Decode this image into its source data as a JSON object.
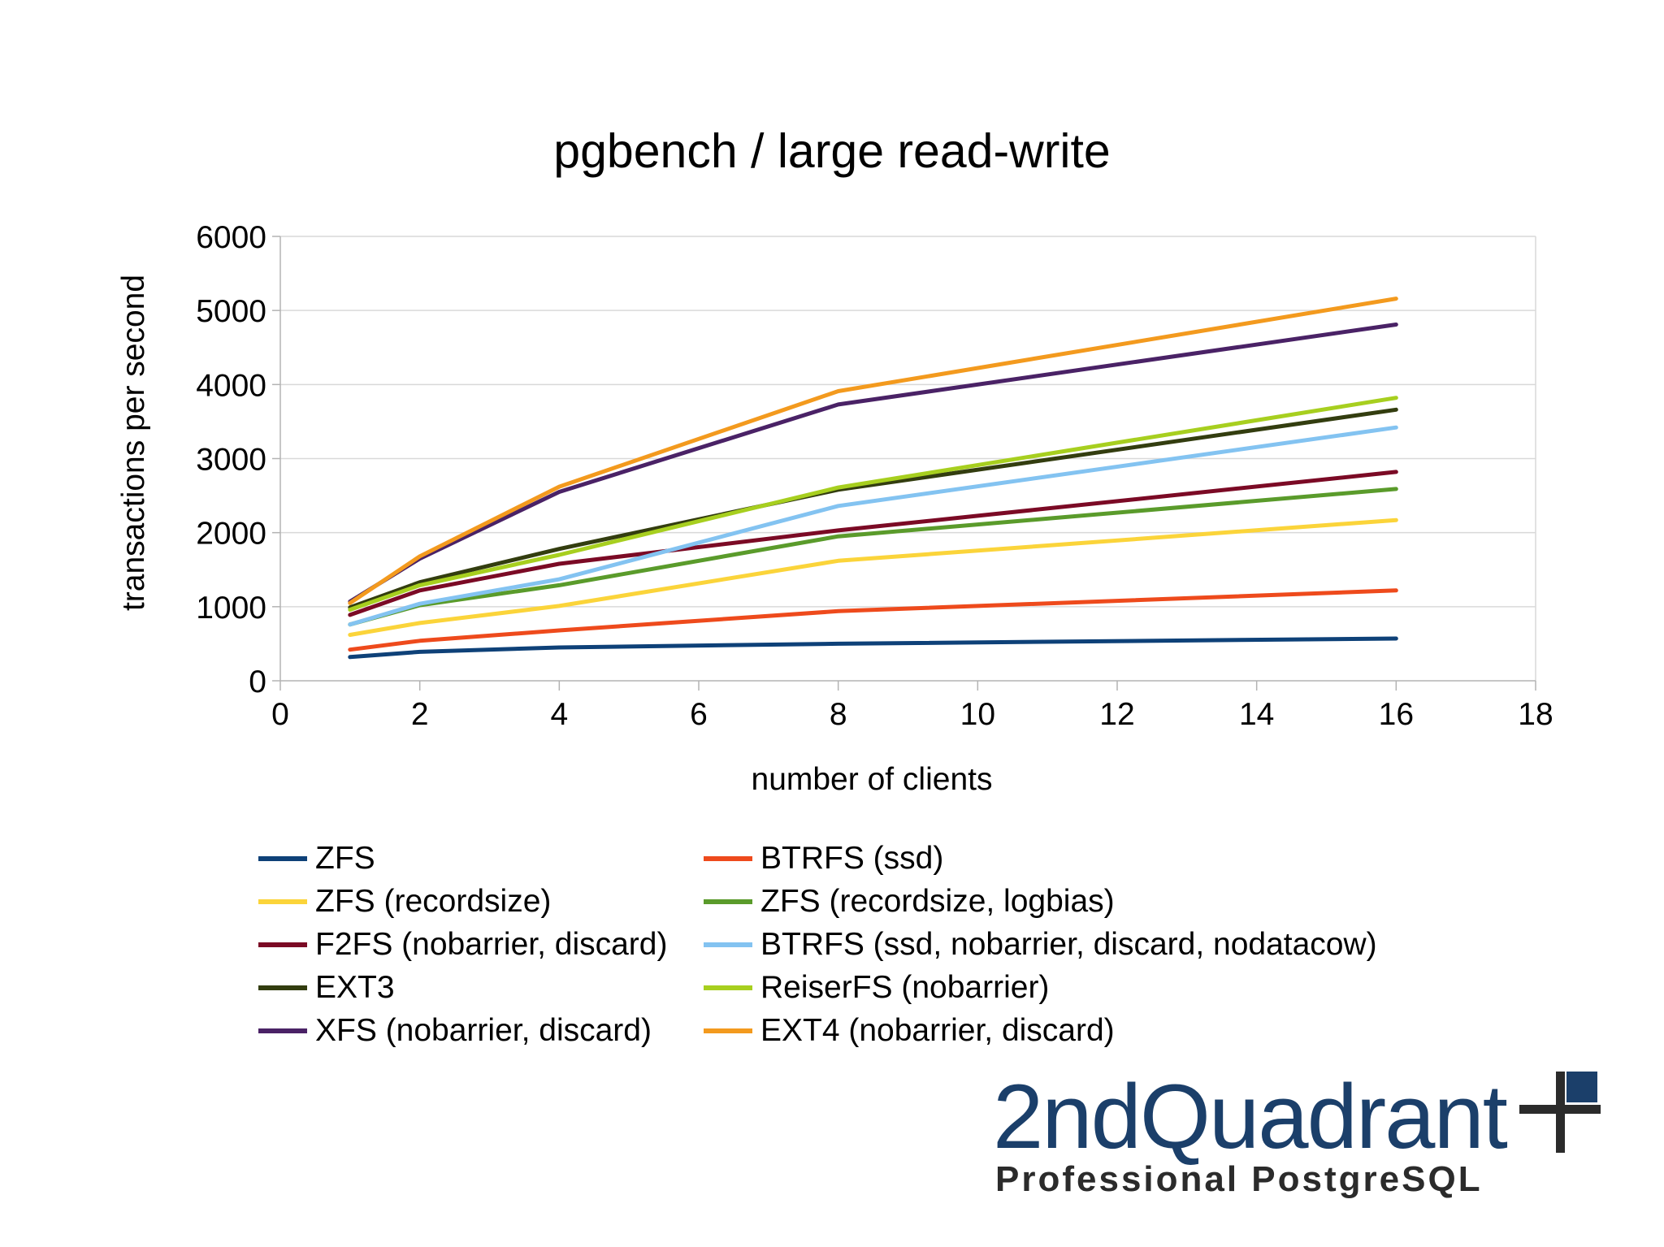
{
  "chart_data": {
    "type": "line",
    "title": "pgbench / large read-write",
    "xlabel": "number of clients",
    "ylabel": "transactions per second",
    "xlim": [
      0,
      18
    ],
    "ylim": [
      0,
      6000
    ],
    "x_ticks": [
      0,
      2,
      4,
      6,
      8,
      10,
      12,
      14,
      16,
      18
    ],
    "y_ticks": [
      0,
      1000,
      2000,
      3000,
      4000,
      5000,
      6000
    ],
    "grid": "horizontal",
    "legend_position": "bottom",
    "x": [
      1,
      2,
      4,
      8,
      16
    ],
    "series": [
      {
        "name": "ZFS",
        "color": "#0e4178",
        "values": [
          320,
          390,
          450,
          500,
          570
        ]
      },
      {
        "name": "BTRFS (ssd)",
        "color": "#ee4a1c",
        "values": [
          420,
          540,
          680,
          940,
          1220
        ]
      },
      {
        "name": "ZFS (recordsize)",
        "color": "#fbd43a",
        "values": [
          620,
          780,
          1010,
          1620,
          2170
        ]
      },
      {
        "name": "ZFS (recordsize, logbias)",
        "color": "#5a9b2b",
        "values": [
          760,
          1020,
          1290,
          1950,
          2590
        ]
      },
      {
        "name": "F2FS (nobarrier, discard)",
        "color": "#7b0a25",
        "values": [
          890,
          1220,
          1580,
          2030,
          2820
        ]
      },
      {
        "name": "BTRFS (ssd, nobarrier, discard, nodatacow)",
        "color": "#83c3f1",
        "values": [
          760,
          1040,
          1370,
          2360,
          3420
        ]
      },
      {
        "name": "EXT3",
        "color": "#333d0f",
        "values": [
          990,
          1330,
          1780,
          2580,
          3660
        ]
      },
      {
        "name": "ReiserFS (nobarrier)",
        "color": "#a7cf1f",
        "values": [
          960,
          1290,
          1700,
          2610,
          3820
        ]
      },
      {
        "name": "XFS (nobarrier, discard)",
        "color": "#4a2266",
        "values": [
          1070,
          1650,
          2550,
          3730,
          4810
        ]
      },
      {
        "name": "EXT4 (nobarrier, discard)",
        "color": "#f39a1e",
        "values": [
          1050,
          1680,
          2620,
          3910,
          5160
        ]
      }
    ]
  },
  "logo": {
    "brand": "2ndQuadrant",
    "tagline": "Professional PostgreSQL",
    "brand_color": "#1b3f6a",
    "icon": "quadrant-cross-icon"
  }
}
